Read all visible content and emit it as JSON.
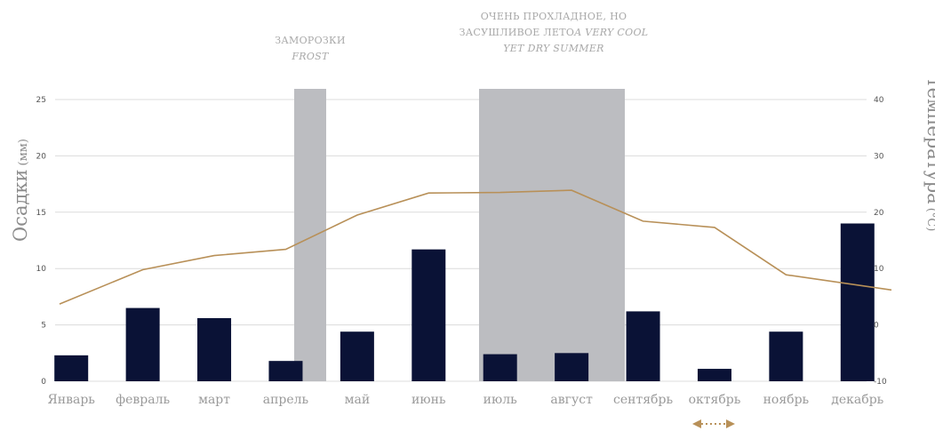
{
  "chart_data": {
    "type": "bar+line",
    "categories": [
      "Январь",
      "февраль",
      "март",
      "апрель",
      "май",
      "июнь",
      "июль",
      "август",
      "сентябрь",
      "октябрь",
      "ноябрь",
      "декабрь"
    ],
    "series": [
      {
        "name": "Осадки",
        "type": "bar",
        "axis": "left",
        "values": [
          2.3,
          6.5,
          5.6,
          1.8,
          4.4,
          11.7,
          2.4,
          2.5,
          6.2,
          1.1,
          4.4,
          14.0
        ]
      },
      {
        "name": "температура",
        "type": "line",
        "axis": "right",
        "values": [
          3.7,
          9.8,
          12.3,
          13.4,
          19.5,
          23.4,
          23.5,
          23.9,
          18.4,
          17.3,
          8.9,
          6.2
        ]
      }
    ],
    "ylabel_left": "Осадки",
    "ylabel_left_unit": "(мм)",
    "ylabel_right": "температура",
    "ylabel_right_unit": "(°C)",
    "ylim_left": [
      0,
      25
    ],
    "yticks_left": [
      0,
      5,
      10,
      15,
      20,
      25
    ],
    "ylim_right": [
      -10,
      40
    ],
    "yticks_right": [
      -10,
      0,
      10,
      20,
      30,
      40
    ],
    "grid": true,
    "shaded_periods": [
      {
        "from": "апрель",
        "to": "апрель",
        "label_line1": "ЗАМОРОЗКИ",
        "label_line2": "FROST"
      },
      {
        "from": "июль",
        "to": "август",
        "label_line1": "ОЧЕНЬ ПРОХЛАДНОЕ, НО",
        "label_line2": "ЗАСУШЛИВОЕ ЛЕТО",
        "label_line2_italic": "A VERY COOL",
        "label_line3": "YET DRY SUMMER"
      }
    ],
    "colors": {
      "bars": "#0a1236",
      "line": "#b89058",
      "shade": "#bcbdc1",
      "grid": "#dcdcdc",
      "arrow": "#b89058"
    },
    "marker": {
      "type": "double-arrow",
      "under_category": "октябрь"
    }
  }
}
